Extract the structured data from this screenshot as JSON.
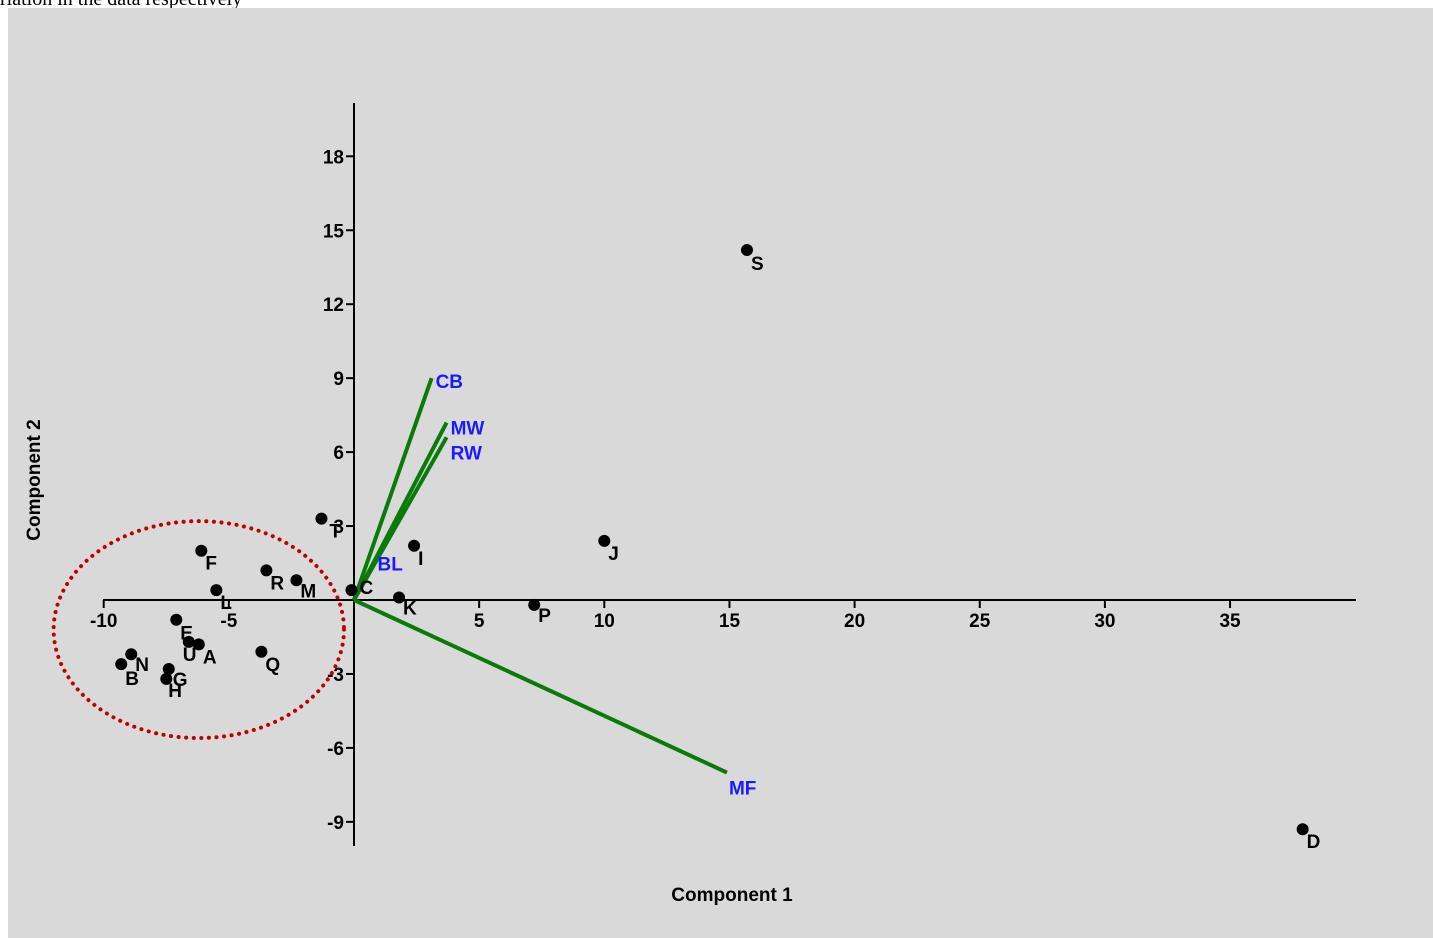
{
  "caption": "riation in the data respectively",
  "chart_data": {
    "type": "scatter",
    "title": "",
    "xlabel": "Component 1",
    "ylabel": "Component 2",
    "xlim": [
      -10,
      40
    ],
    "ylim": [
      -10,
      20
    ],
    "xticks": [
      -10,
      -5,
      5,
      10,
      15,
      20,
      25,
      30,
      35
    ],
    "yticks": [
      18,
      15,
      12,
      9,
      6,
      3,
      -3,
      -6,
      -9
    ],
    "points": [
      {
        "label": "S",
        "x": 15.7,
        "y": 14.2
      },
      {
        "label": "J",
        "x": 10.0,
        "y": 2.4
      },
      {
        "label": "I",
        "x": 2.4,
        "y": 2.2
      },
      {
        "label": "T",
        "x": -1.3,
        "y": 3.3
      },
      {
        "label": "F",
        "x": -6.1,
        "y": 2.0
      },
      {
        "label": "R",
        "x": -3.5,
        "y": 1.2
      },
      {
        "label": "M",
        "x": -2.3,
        "y": 0.8
      },
      {
        "label": "L",
        "x": -5.5,
        "y": 0.4
      },
      {
        "label": "C",
        "x": -0.1,
        "y": 0.4
      },
      {
        "label": "K",
        "x": 1.8,
        "y": 0.1
      },
      {
        "label": "P",
        "x": 7.2,
        "y": -0.2
      },
      {
        "label": "E",
        "x": -7.1,
        "y": -0.8
      },
      {
        "label": "U",
        "x": -6.6,
        "y": -1.7
      },
      {
        "label": "A",
        "x": -6.2,
        "y": -1.8
      },
      {
        "label": "Q",
        "x": -3.7,
        "y": -2.1
      },
      {
        "label": "N",
        "x": -8.9,
        "y": -2.2
      },
      {
        "label": "B",
        "x": -9.3,
        "y": -2.6
      },
      {
        "label": "G",
        "x": -7.4,
        "y": -2.8
      },
      {
        "label": "H",
        "x": -7.5,
        "y": -3.2
      },
      {
        "label": "D",
        "x": 37.9,
        "y": -9.3
      }
    ],
    "loadings": [
      {
        "label": "CB",
        "x": 3.1,
        "y": 9.0
      },
      {
        "label": "MW",
        "x": 3.7,
        "y": 7.2
      },
      {
        "label": "RW",
        "x": 3.7,
        "y": 6.6
      },
      {
        "label": "BL",
        "x": 0.3,
        "y": 0.8
      },
      {
        "label": "MF",
        "x": 14.9,
        "y": -7.0
      }
    ],
    "point_color": "#000000",
    "vector_color": "#0a7a0a",
    "vector_label_color": "#1a1aff",
    "cluster_color": "#c00000",
    "cluster_style": "dotted ellipse",
    "cluster_center": [
      -6.2,
      -1.2
    ],
    "cluster_radii": [
      5.8,
      4.4
    ],
    "background": "#d9d9d9",
    "grid": false,
    "legend": "none"
  }
}
